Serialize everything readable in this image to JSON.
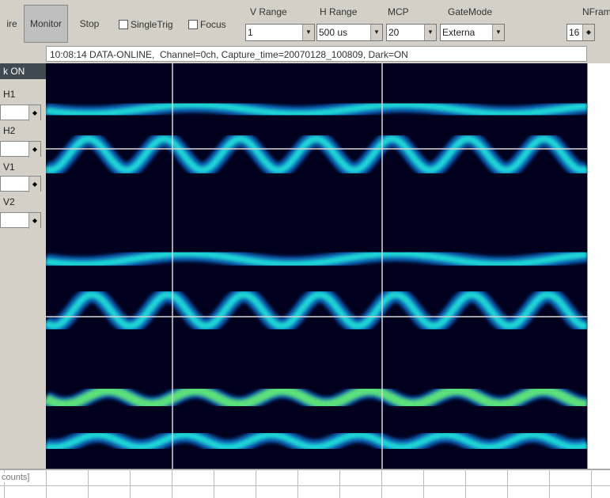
{
  "toolbar": {
    "buttons": [
      "ire",
      "Monitor",
      "Stop"
    ],
    "checkboxes": [
      "SingleTrig",
      "Focus"
    ],
    "groups": [
      {
        "label": "V Range",
        "value": "1"
      },
      {
        "label": "H Range",
        "value": "500 us"
      },
      {
        "label": "MCP",
        "value": "20"
      },
      {
        "label": "GateMode",
        "value": "Externa"
      },
      {
        "label": "NFram",
        "value": "16"
      }
    ]
  },
  "status": "10:08:14 DATA-ONLINE,  Channel=0ch, Capture_time=20070128_100809, Dark=ON",
  "side_panel": {
    "header": "k ON",
    "labels": [
      "H1",
      "H2",
      "V1",
      "V2"
    ]
  },
  "footer": {
    "label": "counts]"
  }
}
